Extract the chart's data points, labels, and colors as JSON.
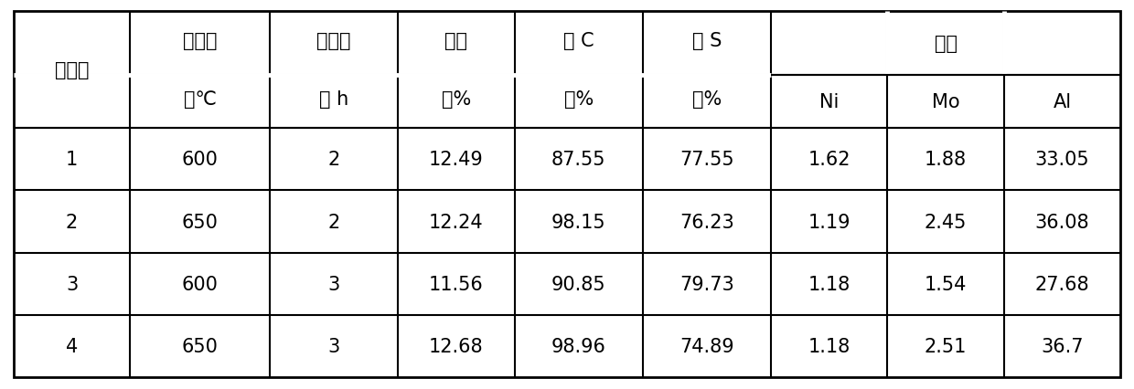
{
  "col_headers_top": [
    "实施例",
    "焙烧温",
    "焙烧时",
    "失重",
    "脱 C",
    "脱 S"
  ],
  "col_headers_bottom": [
    "",
    "度℃",
    "间 h",
    "率%",
    "率%",
    "率%"
  ],
  "merged_header": "焙砂",
  "sub_headers": [
    "Ni",
    "Mo",
    "Al"
  ],
  "rows": [
    [
      "1",
      "600",
      "2",
      "12.49",
      "87.55",
      "77.55",
      "1.62",
      "1.88",
      "33.05"
    ],
    [
      "2",
      "650",
      "2",
      "12.24",
      "98.15",
      "76.23",
      "1.19",
      "2.45",
      "36.08"
    ],
    [
      "3",
      "600",
      "3",
      "11.56",
      "90.85",
      "79.73",
      "1.18",
      "1.54",
      "27.68"
    ],
    [
      "4",
      "650",
      "3",
      "12.68",
      "98.96",
      "74.89",
      "1.18",
      "2.51",
      "36.7"
    ]
  ],
  "col_widths_rel": [
    1.0,
    1.2,
    1.1,
    1.0,
    1.1,
    1.1,
    1.0,
    1.0,
    1.0
  ],
  "background_color": "#ffffff",
  "line_color": "#000000",
  "text_color": "#000000",
  "font_size": 15
}
